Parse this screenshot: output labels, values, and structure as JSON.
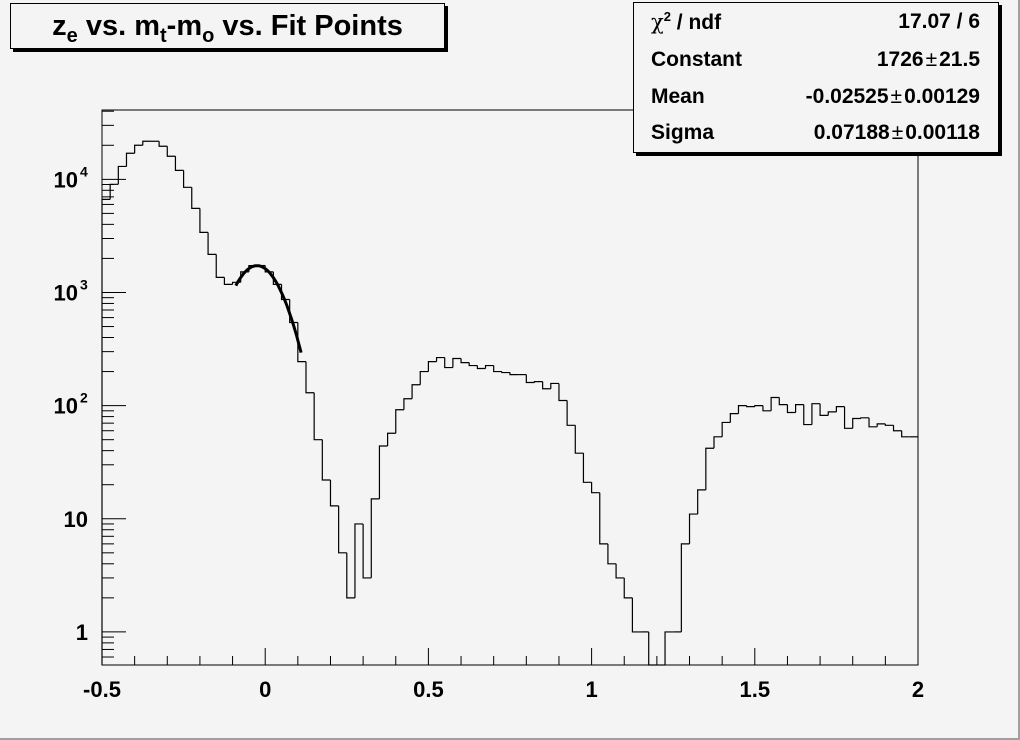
{
  "title": {
    "parts": [
      {
        "text": "z",
        "sub": "e"
      },
      {
        "text": " vs. m",
        "sub": "t"
      },
      {
        "text": "-m",
        "sub": "o"
      },
      {
        "text": " vs. Fit Points",
        "sub": ""
      }
    ]
  },
  "stats": {
    "chi2_label": "χ",
    "chi2_sup": "2",
    "chi2_rest": " / ndf",
    "chi2_value": "17.07 / 6",
    "rows": [
      {
        "label": "Constant",
        "value": "1726",
        "error": "21.5"
      },
      {
        "label": "Mean",
        "value": "-0.02525",
        "error": "0.00129"
      },
      {
        "label": "Sigma",
        "value": "0.07188",
        "error": "0.00118"
      }
    ],
    "pm_symbol": "±"
  },
  "chart_data": {
    "type": "histogram",
    "xlim": [
      -0.5,
      2.0
    ],
    "ylim": [
      0.51,
      41000
    ],
    "yscale": "log",
    "grid": false,
    "line_color": "#000000",
    "background_color": "#f4f4f4",
    "x_ticks": [
      "-0.5",
      "0",
      "0.5",
      "1",
      "1.5",
      "2"
    ],
    "x_tick_values": [
      -0.5,
      0,
      0.5,
      1,
      1.5,
      2
    ],
    "y_ticks": [
      {
        "value": 1,
        "base": "1",
        "exp": ""
      },
      {
        "value": 10,
        "base": "10",
        "exp": ""
      },
      {
        "value": 100,
        "base": "10",
        "exp": "2"
      },
      {
        "value": 1000,
        "base": "10",
        "exp": "3"
      },
      {
        "value": 10000,
        "base": "10",
        "exp": "4"
      }
    ],
    "bin_width": 0.025,
    "values": [
      6650,
      9040,
      13000,
      17000,
      20000,
      21700,
      21700,
      19600,
      16000,
      12000,
      8500,
      5540,
      3400,
      2170,
      1360,
      1180,
      1230,
      1520,
      1730,
      1730,
      1520,
      1180,
      867,
      543,
      245,
      130,
      50,
      22,
      13,
      5,
      2,
      9,
      3,
      15,
      44,
      57,
      92,
      115,
      153,
      200,
      245,
      266,
      217,
      261,
      240,
      226,
      213,
      226,
      200,
      196,
      188,
      188,
      160,
      163,
      141,
      157,
      111,
      67,
      38,
      21,
      17,
      6,
      4,
      3,
      2,
      1,
      1,
      0,
      0,
      1,
      1,
      6,
      11,
      18,
      42,
      53,
      71,
      85,
      100,
      98,
      100,
      90,
      118,
      102,
      87,
      102,
      68,
      104,
      82,
      88,
      98,
      63,
      77,
      78,
      65,
      69,
      67,
      60,
      53,
      53
    ],
    "fit": {
      "function": "gaus",
      "constant": 1726,
      "mean": -0.02525,
      "sigma": 0.07188,
      "range": [
        -0.09,
        0.11
      ]
    }
  }
}
